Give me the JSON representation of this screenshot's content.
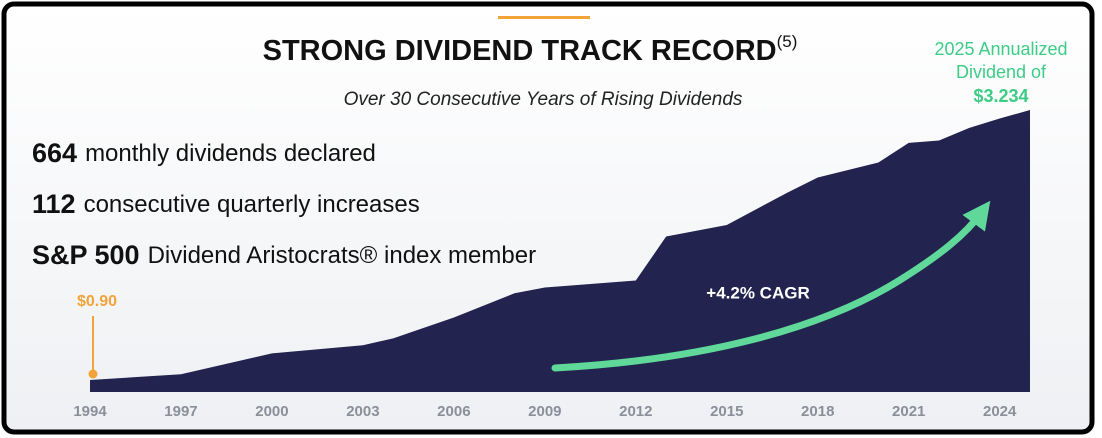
{
  "chart_data": {
    "type": "area",
    "title": "STRONG DIVIDEND TRACK RECORD",
    "title_note": "(5)",
    "subtitle": "Over 30 Consecutive Years of Rising Dividends",
    "stats": [
      {
        "number": "664",
        "text": "monthly dividends declared"
      },
      {
        "number": "112",
        "text": "consecutive quarterly increases"
      },
      {
        "number": "S&P 500",
        "text": "Dividend Aristocrats® index member"
      }
    ],
    "start_label": "$0.90",
    "end_annotation": [
      "2025 Annualized",
      "Dividend of"
    ],
    "end_label": "$3.234",
    "growth_label": "+4.2% CAGR",
    "x": [
      1994,
      1997,
      2000,
      2003,
      2004,
      2006,
      2008,
      2009,
      2012,
      2013,
      2015,
      2017,
      2018,
      2020,
      2021,
      2022,
      2023,
      2024,
      2025
    ],
    "values": [
      0.9,
      0.95,
      1.13,
      1.2,
      1.26,
      1.44,
      1.65,
      1.7,
      1.76,
      2.14,
      2.24,
      2.52,
      2.65,
      2.78,
      2.95,
      2.97,
      3.08,
      3.16,
      3.234
    ],
    "color": "#22234f",
    "xlim": [
      1994,
      2025
    ],
    "xticks": [
      1994,
      1997,
      2000,
      2003,
      2006,
      2009,
      2012,
      2015,
      2018,
      2021,
      2024
    ]
  }
}
